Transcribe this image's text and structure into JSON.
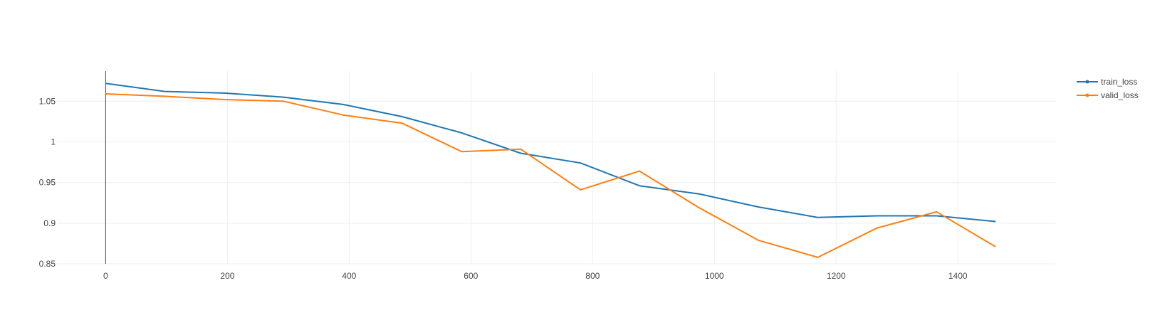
{
  "chart_data": {
    "type": "line",
    "title": "",
    "xlabel": "",
    "ylabel": "",
    "xlim": [
      -80,
      1560
    ],
    "ylim": [
      0.85,
      1.087
    ],
    "xticks": [
      0,
      200,
      400,
      600,
      800,
      1000,
      1200,
      1400
    ],
    "xtick_labels": [
      "0",
      "200",
      "400",
      "600",
      "800",
      "1000",
      "1200",
      "1400"
    ],
    "yticks": [
      0.85,
      0.9,
      0.95,
      1,
      1.05
    ],
    "ytick_labels": [
      "0.85",
      "0.9",
      "0.95",
      "1",
      "1.05"
    ],
    "grid": true,
    "legend_position": "top-right",
    "colors": {
      "train_loss": "#1f77b4",
      "valid_loss": "#ff7f0e",
      "grid": "#eeeeee",
      "zeroline": "#444444"
    },
    "series": [
      {
        "name": "train_loss",
        "x": [
          0,
          97,
          195,
          292,
          390,
          487,
          585,
          682,
          780,
          877,
          975,
          1072,
          1170,
          1267,
          1365,
          1462
        ],
        "y": [
          1.072,
          1.062,
          1.06,
          1.055,
          1.046,
          1.031,
          1.011,
          0.986,
          0.974,
          0.946,
          0.936,
          0.92,
          0.907,
          0.909,
          0.909,
          0.902
        ]
      },
      {
        "name": "valid_loss",
        "x": [
          0,
          97,
          195,
          292,
          390,
          487,
          585,
          682,
          780,
          877,
          975,
          1072,
          1170,
          1267,
          1365,
          1462
        ],
        "y": [
          1.059,
          1.056,
          1.052,
          1.05,
          1.033,
          1.023,
          0.988,
          0.991,
          0.941,
          0.964,
          0.919,
          0.879,
          0.858,
          0.894,
          0.914,
          0.871
        ]
      }
    ]
  }
}
